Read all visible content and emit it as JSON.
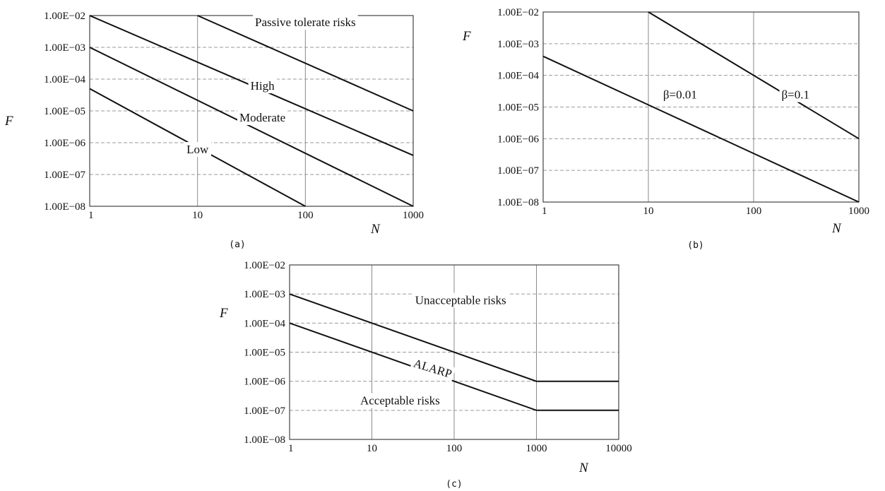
{
  "chart_data": [
    {
      "type": "line",
      "panel_label": "(a)",
      "xlabel": "N",
      "ylabel": "F",
      "x_scale": "log",
      "y_scale": "log",
      "xlim": [
        1,
        1000
      ],
      "ylim": [
        1e-08,
        0.01
      ],
      "x_ticks": [
        {
          "value": 1,
          "label": "1"
        },
        {
          "value": 10,
          "label": "10"
        },
        {
          "value": 100,
          "label": "100"
        },
        {
          "value": 1000,
          "label": "1000"
        }
      ],
      "y_ticks": [
        {
          "value": 0.01,
          "label": "1.00E−02"
        },
        {
          "value": 0.001,
          "label": "1.00E−03"
        },
        {
          "value": 0.0001,
          "label": "1.00E−04"
        },
        {
          "value": 1e-05,
          "label": "1.00E−05"
        },
        {
          "value": 1e-06,
          "label": "1.00E−06"
        },
        {
          "value": 1e-07,
          "label": "1.00E−07"
        },
        {
          "value": 1e-08,
          "label": "1.00E−08"
        }
      ],
      "grid": true,
      "series": [
        {
          "points": [
            [
              1,
              5e-05
            ],
            [
              100,
              1e-08
            ]
          ]
        },
        {
          "points": [
            [
              1,
              0.001
            ],
            [
              1000,
              1e-08
            ]
          ]
        },
        {
          "points": [
            [
              1,
              0.01
            ],
            [
              1000,
              4e-07
            ]
          ]
        },
        {
          "points": [
            [
              10,
              0.01
            ],
            [
              1000,
              1e-05
            ]
          ]
        }
      ],
      "annotations": [
        {
          "text": "Passive tolerate risks",
          "x": 100,
          "y": 0.0063
        },
        {
          "text": "High",
          "x": 40,
          "y": 6.3e-05
        },
        {
          "text": "Moderate",
          "x": 40,
          "y": 6.3e-06
        },
        {
          "text": "Low",
          "x": 10,
          "y": 6.3e-07
        }
      ]
    },
    {
      "type": "line",
      "panel_label": "(b)",
      "xlabel": "N",
      "ylabel": "F",
      "x_scale": "log",
      "y_scale": "log",
      "xlim": [
        1,
        1000
      ],
      "ylim": [
        1e-08,
        0.01
      ],
      "x_ticks": [
        {
          "value": 1,
          "label": "1"
        },
        {
          "value": 10,
          "label": "10"
        },
        {
          "value": 100,
          "label": "100"
        },
        {
          "value": 1000,
          "label": "1000"
        }
      ],
      "y_ticks": [
        {
          "value": 0.01,
          "label": "1.00E−02"
        },
        {
          "value": 0.001,
          "label": "1.00E−03"
        },
        {
          "value": 0.0001,
          "label": "1.00E−04"
        },
        {
          "value": 1e-05,
          "label": "1.00E−05"
        },
        {
          "value": 1e-06,
          "label": "1.00E−06"
        },
        {
          "value": 1e-07,
          "label": "1.00E−07"
        },
        {
          "value": 1e-08,
          "label": "1.00E−08"
        }
      ],
      "grid": true,
      "series": [
        {
          "points": [
            [
              1,
              0.0004
            ],
            [
              1000,
              1e-08
            ]
          ]
        },
        {
          "points": [
            [
              10,
              0.01
            ],
            [
              1000,
              1e-06
            ]
          ]
        }
      ],
      "annotations": [
        {
          "text": "β=0.01",
          "x": 20,
          "y": 2.5e-05
        },
        {
          "text": "β=0.1",
          "x": 250,
          "y": 2.5e-05
        }
      ]
    },
    {
      "type": "line",
      "panel_label": "(c)",
      "xlabel": "N",
      "ylabel": "F",
      "x_scale": "log",
      "y_scale": "log",
      "xlim": [
        1,
        10000
      ],
      "ylim": [
        1e-08,
        0.01
      ],
      "x_ticks": [
        {
          "value": 1,
          "label": "1"
        },
        {
          "value": 10,
          "label": "10"
        },
        {
          "value": 100,
          "label": "100"
        },
        {
          "value": 1000,
          "label": "1000"
        },
        {
          "value": 10000,
          "label": "10000"
        }
      ],
      "y_ticks": [
        {
          "value": 0.01,
          "label": "1.00E−02"
        },
        {
          "value": 0.001,
          "label": "1.00E−03"
        },
        {
          "value": 0.0001,
          "label": "1.00E−04"
        },
        {
          "value": 1e-05,
          "label": "1.00E−05"
        },
        {
          "value": 1e-06,
          "label": "1.00E−06"
        },
        {
          "value": 1e-07,
          "label": "1.00E−07"
        },
        {
          "value": 1e-08,
          "label": "1.00E−08"
        }
      ],
      "grid": true,
      "series": [
        {
          "points": [
            [
              1,
              0.001
            ],
            [
              1000,
              1e-06
            ],
            [
              10000,
              1e-06
            ]
          ]
        },
        {
          "points": [
            [
              1,
              0.0001
            ],
            [
              1000,
              1e-07
            ],
            [
              10000,
              1e-07
            ]
          ]
        }
      ],
      "annotations": [
        {
          "text": "Unacceptable risks",
          "x": 120,
          "y": 0.00063
        },
        {
          "text": "ALARP",
          "x": 55,
          "y": 2.8e-06,
          "rotated": true
        },
        {
          "text": "Acceptable risks",
          "x": 22,
          "y": 2.2e-07
        }
      ]
    }
  ]
}
